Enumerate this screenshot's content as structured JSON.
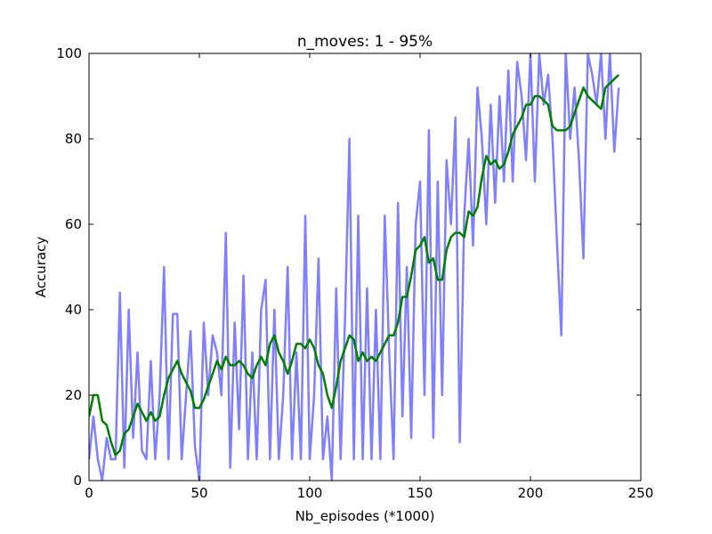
{
  "chart_data": {
    "type": "line",
    "title": "n_moves: 1 - 95%",
    "x_label": "Nb_episodes (*1000)",
    "y_label": "Accuracy",
    "x": [
      0,
      2,
      4,
      6,
      8,
      10,
      12,
      14,
      16,
      18,
      20,
      22,
      24,
      26,
      28,
      30,
      32,
      34,
      36,
      38,
      40,
      42,
      44,
      46,
      48,
      50,
      52,
      54,
      56,
      58,
      60,
      62,
      64,
      66,
      68,
      70,
      72,
      74,
      76,
      78,
      80,
      82,
      84,
      86,
      88,
      90,
      92,
      94,
      96,
      98,
      100,
      102,
      104,
      106,
      108,
      110,
      112,
      114,
      116,
      118,
      120,
      122,
      124,
      126,
      128,
      130,
      132,
      134,
      136,
      138,
      140,
      142,
      144,
      146,
      148,
      150,
      152,
      154,
      156,
      158,
      160,
      162,
      164,
      166,
      168,
      170,
      172,
      174,
      176,
      178,
      180,
      182,
      184,
      186,
      188,
      190,
      192,
      194,
      196,
      198,
      200,
      202,
      204,
      206,
      208,
      210,
      212,
      214,
      216,
      218,
      220,
      222,
      224,
      226,
      228,
      230,
      232,
      234,
      236,
      238,
      240
    ],
    "series": [
      {
        "color": "#7f7fff",
        "width": 2.5,
        "values": [
          5,
          15,
          5,
          0,
          10,
          5,
          5,
          44,
          3,
          40,
          10,
          30,
          7,
          5,
          28,
          5,
          20,
          50,
          5,
          39,
          39,
          5,
          20,
          35,
          8,
          0,
          37,
          20,
          34,
          30,
          20,
          58,
          3,
          37,
          12,
          48,
          5,
          30,
          5,
          40,
          47,
          5,
          40,
          5,
          20,
          50,
          5,
          30,
          5,
          62,
          5,
          20,
          52,
          5,
          15,
          0,
          45,
          5,
          38,
          80,
          5,
          62,
          5,
          45,
          5,
          40,
          5,
          62,
          30,
          5,
          65,
          15,
          50,
          10,
          60,
          70,
          20,
          82,
          10,
          70,
          20,
          75,
          60,
          85,
          9,
          62,
          80,
          55,
          92,
          80,
          60,
          88,
          65,
          90,
          70,
          96,
          70,
          98,
          90,
          75,
          100,
          70,
          100,
          88,
          95,
          80,
          56,
          34,
          100,
          80,
          92,
          75,
          52,
          100,
          95,
          88,
          100,
          80,
          100,
          77,
          92
        ]
      },
      {
        "color": "#007f00",
        "width": 2.5,
        "values": [
          15,
          20,
          20,
          14,
          13,
          9,
          6,
          7,
          11,
          12,
          15,
          18,
          16,
          14,
          16,
          14,
          15,
          20,
          24,
          26,
          28,
          25,
          23,
          21,
          17,
          17,
          19,
          22,
          25,
          28,
          26,
          29,
          27,
          27,
          28,
          27,
          25,
          24,
          27,
          29,
          27,
          32,
          34,
          30,
          28,
          25,
          28,
          32,
          32,
          31,
          33,
          31,
          27,
          25,
          20,
          17,
          22,
          28,
          31,
          34,
          33,
          28,
          30,
          28,
          29,
          28,
          30,
          32,
          34,
          34,
          37,
          43,
          43,
          48,
          54,
          55,
          57,
          51,
          52,
          47,
          47,
          54,
          57,
          58,
          58,
          57,
          63,
          62,
          64,
          71,
          76,
          74,
          75,
          73,
          74,
          77,
          81,
          83,
          85,
          88,
          88,
          90,
          90,
          89,
          88,
          83,
          82,
          82,
          82,
          83,
          86,
          89,
          92,
          90,
          89,
          88,
          87,
          92,
          93,
          94,
          95
        ]
      }
    ],
    "xlim": [
      0,
      250
    ],
    "xticks": [
      0,
      50,
      100,
      150,
      200,
      250
    ],
    "ylim": [
      0,
      100
    ],
    "yticks": [
      0,
      20,
      40,
      60,
      80,
      100
    ]
  }
}
